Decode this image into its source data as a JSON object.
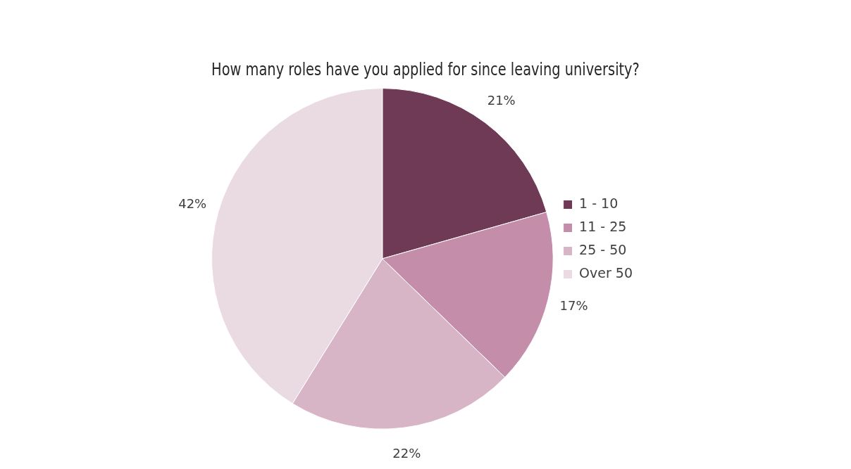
{
  "chart_data": {
    "type": "pie",
    "title": "How many roles have you applied for since leaving university?",
    "categories": [
      "1 - 10",
      "11 - 25",
      "25 - 50",
      "Over 50"
    ],
    "values": [
      21,
      17,
      22,
      42
    ],
    "value_labels": [
      "21%",
      "17%",
      "22%",
      "42%"
    ],
    "colors": [
      "#6f3a55",
      "#c48eaa",
      "#d8b4c7",
      "#eadae2"
    ],
    "legend": "right"
  }
}
